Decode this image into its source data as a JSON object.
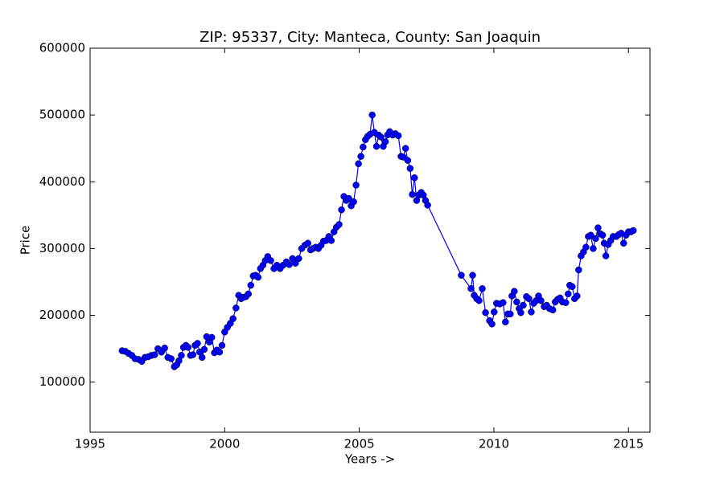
{
  "chart_data": {
    "type": "line",
    "title": "ZIP: 95337, City: Manteca, County: San Joaquin",
    "xlabel": "Years ->",
    "ylabel": "Price",
    "color": "#0000ff",
    "xlim": [
      1995,
      2015.8
    ],
    "ylim": [
      25000,
      600000
    ],
    "xticks": [
      1995,
      2000,
      2005,
      2010,
      2015
    ],
    "yticks": [
      100000,
      200000,
      300000,
      400000,
      500000,
      600000
    ],
    "x": [
      1996.19,
      1996.31,
      1996.43,
      1996.55,
      1996.67,
      1996.8,
      1996.92,
      1997.04,
      1997.16,
      1997.28,
      1997.4,
      1997.52,
      1997.65,
      1997.77,
      1997.89,
      1998.01,
      1998.13,
      1998.22,
      1998.3,
      1998.39,
      1998.47,
      1998.56,
      1998.64,
      1998.73,
      1998.82,
      1998.9,
      1998.99,
      1999.07,
      1999.16,
      1999.24,
      1999.33,
      1999.43,
      1999.52,
      1999.62,
      1999.71,
      1999.81,
      1999.9,
      2000.0,
      2000.1,
      2000.21,
      2000.31,
      2000.42,
      2000.52,
      2000.61,
      2000.7,
      2000.79,
      2000.88,
      2000.97,
      2001.06,
      2001.15,
      2001.24,
      2001.33,
      2001.42,
      2001.51,
      2001.6,
      2001.71,
      2001.83,
      2001.94,
      2002.06,
      2002.17,
      2002.29,
      2002.4,
      2002.52,
      2002.63,
      2002.75,
      2002.86,
      2002.98,
      2003.09,
      2003.19,
      2003.28,
      2003.38,
      2003.48,
      2003.58,
      2003.67,
      2003.77,
      2003.87,
      2003.96,
      2004.06,
      2004.15,
      2004.25,
      2004.34,
      2004.43,
      2004.52,
      2004.61,
      2004.7,
      2004.79,
      2004.88,
      2004.97,
      2005.06,
      2005.14,
      2005.23,
      2005.31,
      2005.4,
      2005.48,
      2005.56,
      2005.64,
      2005.72,
      2005.8,
      2005.89,
      2005.97,
      2006.05,
      2006.13,
      2006.24,
      2006.34,
      2006.45,
      2006.55,
      2006.63,
      2006.72,
      2006.8,
      2006.89,
      2006.97,
      2007.05,
      2007.13,
      2007.21,
      2007.3,
      2007.38,
      2007.46,
      2007.54,
      2008.79,
      2009.15,
      2009.21,
      2009.27,
      2009.36,
      2009.45,
      2009.57,
      2009.69,
      2009.84,
      2009.93,
      2010.01,
      2010.1,
      2010.22,
      2010.34,
      2010.43,
      2010.52,
      2010.61,
      2010.67,
      2010.76,
      2010.85,
      2010.94,
      2011.0,
      2011.09,
      2011.21,
      2011.3,
      2011.39,
      2011.48,
      2011.57,
      2011.66,
      2011.75,
      2011.87,
      2011.96,
      2012.07,
      2012.19,
      2012.28,
      2012.37,
      2012.46,
      2012.55,
      2012.67,
      2012.76,
      2012.82,
      2012.91,
      2013.0,
      2013.09,
      2013.15,
      2013.24,
      2013.33,
      2013.42,
      2013.51,
      2013.6,
      2013.69,
      2013.78,
      2013.87,
      2013.96,
      2014.04,
      2014.1,
      2014.16,
      2014.25,
      2014.34,
      2014.43,
      2014.55,
      2014.64,
      2014.73,
      2014.82,
      2014.91,
      2015.0,
      2015.09,
      2015.18
    ],
    "values": [
      147000,
      146000,
      143000,
      140000,
      135000,
      134000,
      131000,
      137000,
      138000,
      140000,
      141000,
      150000,
      145000,
      151000,
      137000,
      135000,
      123000,
      126000,
      132000,
      140000,
      152000,
      155000,
      152000,
      140000,
      141000,
      155000,
      158000,
      145000,
      137000,
      149000,
      168000,
      160000,
      167000,
      144000,
      148000,
      145000,
      155000,
      175000,
      182000,
      188000,
      195000,
      211000,
      230000,
      225000,
      227000,
      228000,
      232000,
      245000,
      259000,
      260000,
      257000,
      270000,
      275000,
      282000,
      288000,
      282000,
      270000,
      275000,
      270000,
      275000,
      280000,
      276000,
      285000,
      278000,
      285000,
      300000,
      305000,
      308000,
      298000,
      300000,
      302000,
      300000,
      305000,
      311000,
      312000,
      318000,
      312000,
      325000,
      332000,
      336000,
      358000,
      378000,
      372000,
      375000,
      364000,
      370000,
      395000,
      427000,
      438000,
      452000,
      463000,
      468000,
      471000,
      500000,
      474000,
      453000,
      470000,
      467000,
      453000,
      460000,
      470000,
      475000,
      470000,
      472000,
      469000,
      438000,
      437000,
      450000,
      432000,
      420000,
      381000,
      406000,
      372000,
      380000,
      384000,
      380000,
      372000,
      365000,
      260000,
      240000,
      260000,
      230000,
      225000,
      222000,
      240000,
      204000,
      192000,
      187000,
      205000,
      218000,
      217000,
      219000,
      190000,
      202000,
      202000,
      229000,
      236000,
      220000,
      210000,
      204000,
      215000,
      228000,
      225000,
      205000,
      218000,
      222000,
      229000,
      222000,
      213000,
      215000,
      210000,
      208000,
      220000,
      224000,
      226000,
      220000,
      219000,
      232000,
      245000,
      243000,
      225000,
      229000,
      268000,
      289000,
      295000,
      302000,
      318000,
      320000,
      300000,
      315000,
      331000,
      322000,
      320000,
      308000,
      289000,
      306000,
      312000,
      318000,
      318000,
      321000,
      323000,
      308000,
      320000,
      325000,
      325000,
      327000
    ]
  }
}
